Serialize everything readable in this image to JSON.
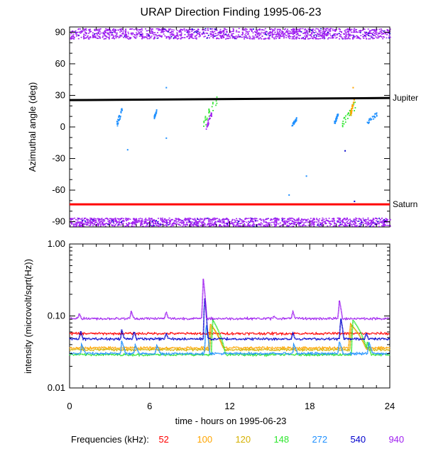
{
  "chart_data": [
    {
      "type": "scatter",
      "title": "URAP Direction Finding  1995-06-23",
      "xlabel": "",
      "ylabel": "Azimuthal angle (deg)",
      "xlim": [
        0,
        24
      ],
      "ylim": [
        -95,
        95
      ],
      "y_ticks": [
        {
          "value": 90,
          "label": "90"
        },
        {
          "value": 60,
          "label": "60"
        },
        {
          "value": 30,
          "label": "30"
        },
        {
          "value": 0,
          "label": "0"
        },
        {
          "value": -30,
          "label": "-30"
        },
        {
          "value": -60,
          "label": "-60"
        },
        {
          "value": -90,
          "label": "-90"
        }
      ],
      "reference_lines": [
        {
          "name": "Jupiter",
          "color": "#000000",
          "x": [
            0,
            24
          ],
          "y": [
            25.5,
            27.5
          ]
        },
        {
          "name": "Saturn",
          "color": "#ff0000",
          "x": [
            0,
            24
          ],
          "y": [
            -73.5,
            -73.5
          ]
        }
      ],
      "bands": [
        {
          "color": "#a020f0",
          "y_range": [
            84,
            94
          ]
        },
        {
          "color": "#a020f0",
          "y_range": [
            -94,
            -86
          ]
        }
      ],
      "clusters": [
        {
          "x": [
            3.5,
            3.9
          ],
          "y": [
            0,
            20
          ],
          "color": "#1e90ff"
        },
        {
          "x": [
            6.3,
            6.5
          ],
          "y": [
            8,
            18
          ],
          "color": "#1e90ff"
        },
        {
          "x": [
            10.0,
            11.0
          ],
          "y": [
            -2,
            32
          ],
          "color": "#2ee62e"
        },
        {
          "x": [
            10.2,
            10.6
          ],
          "y": [
            -2,
            15
          ],
          "color": "#a020f0"
        },
        {
          "x": [
            16.6,
            17.0
          ],
          "y": [
            0,
            10
          ],
          "color": "#1e90ff"
        },
        {
          "x": [
            19.8,
            20.1
          ],
          "y": [
            2,
            15
          ],
          "color": "#1e90ff"
        },
        {
          "x": [
            20.4,
            21.4
          ],
          "y": [
            0,
            25
          ],
          "color": "#2ee62e"
        },
        {
          "x": [
            21.0,
            21.3
          ],
          "y": [
            10,
            28
          ],
          "color": "#ffa500"
        },
        {
          "x": [
            22.2,
            23.0
          ],
          "y": [
            2,
            15
          ],
          "color": "#1e90ff"
        }
      ],
      "outliers": [
        {
          "x": 7.2,
          "y": 38,
          "color": "#1e90ff"
        },
        {
          "x": 7.2,
          "y": -10,
          "color": "#1e90ff"
        },
        {
          "x": 4.3,
          "y": -21,
          "color": "#1e90ff"
        },
        {
          "x": 16.4,
          "y": -64,
          "color": "#1e90ff"
        },
        {
          "x": 17.7,
          "y": -46,
          "color": "#1e90ff"
        },
        {
          "x": 21.2,
          "y": 38,
          "color": "#ffa500"
        },
        {
          "x": 21.3,
          "y": -70,
          "color": "#0000cd"
        },
        {
          "x": 20.6,
          "y": -22,
          "color": "#0000cd"
        }
      ]
    },
    {
      "type": "line",
      "xlabel": "time - hours on 1995-06-23",
      "ylabel": "intensity (microvolt/sqrt(Hz))",
      "xlim": [
        0,
        24
      ],
      "ylim": [
        0.01,
        1.0
      ],
      "yscale": "log",
      "x_ticks": [
        {
          "value": 0,
          "label": "0"
        },
        {
          "value": 6,
          "label": "6"
        },
        {
          "value": 12,
          "label": "12"
        },
        {
          "value": 18,
          "label": "18"
        },
        {
          "value": 24,
          "label": "24"
        }
      ],
      "y_ticks": [
        {
          "value": 1.0,
          "label": "1.00"
        },
        {
          "value": 0.1,
          "label": "0.10"
        },
        {
          "value": 0.01,
          "label": "0.01"
        }
      ],
      "legend_title": "Frequencies (kHz):",
      "legend_placement": "bottom",
      "series": [
        {
          "name": "52",
          "color": "#ff0000",
          "baseline": 0.057,
          "spikes": []
        },
        {
          "name": "100",
          "color": "#ffa500",
          "baseline": 0.036,
          "spikes": [
            [
              10.5,
              0.08,
              1.0
            ],
            [
              21.0,
              0.08,
              1.2
            ]
          ]
        },
        {
          "name": "120",
          "color": "#d4b000",
          "baseline": 0.034,
          "spikes": [
            [
              10.6,
              0.075,
              1.0
            ],
            [
              21.1,
              0.075,
              1.2
            ]
          ]
        },
        {
          "name": "148",
          "color": "#2ee62e",
          "baseline": 0.029,
          "spikes": [
            [
              10.7,
              0.09,
              1.0
            ],
            [
              21.2,
              0.09,
              1.2
            ],
            [
              22.3,
              0.045,
              0.3
            ]
          ]
        },
        {
          "name": "272",
          "color": "#1e90ff",
          "baseline": 0.03,
          "spikes": [
            [
              0.9,
              0.04,
              0.3
            ],
            [
              3.9,
              0.045,
              0.3
            ],
            [
              4.9,
              0.04,
              0.3
            ],
            [
              6.5,
              0.04,
              0.3
            ],
            [
              10.2,
              0.085,
              0.3
            ],
            [
              16.8,
              0.04,
              0.3
            ],
            [
              20.2,
              0.045,
              0.3
            ],
            [
              22.4,
              0.045,
              0.3
            ]
          ]
        },
        {
          "name": "540",
          "color": "#0000cd",
          "baseline": 0.048,
          "spikes": [
            [
              0.8,
              0.065,
              0.2
            ],
            [
              3.9,
              0.065,
              0.2
            ],
            [
              4.8,
              0.065,
              0.2
            ],
            [
              7.2,
              0.06,
              0.2
            ],
            [
              10.1,
              0.2,
              0.25
            ],
            [
              16.7,
              0.06,
              0.2
            ],
            [
              20.3,
              0.1,
              0.25
            ],
            [
              22.2,
              0.06,
              0.2
            ]
          ]
        },
        {
          "name": "940",
          "color": "#a020f0",
          "baseline": 0.092,
          "spikes": [
            [
              0.7,
              0.11,
              0.2
            ],
            [
              4.6,
              0.12,
              0.2
            ],
            [
              7.2,
              0.12,
              0.2
            ],
            [
              10.0,
              0.35,
              0.25
            ],
            [
              15.3,
              0.1,
              0.2
            ],
            [
              16.7,
              0.12,
              0.2
            ],
            [
              20.2,
              0.17,
              0.25
            ]
          ]
        }
      ]
    }
  ]
}
